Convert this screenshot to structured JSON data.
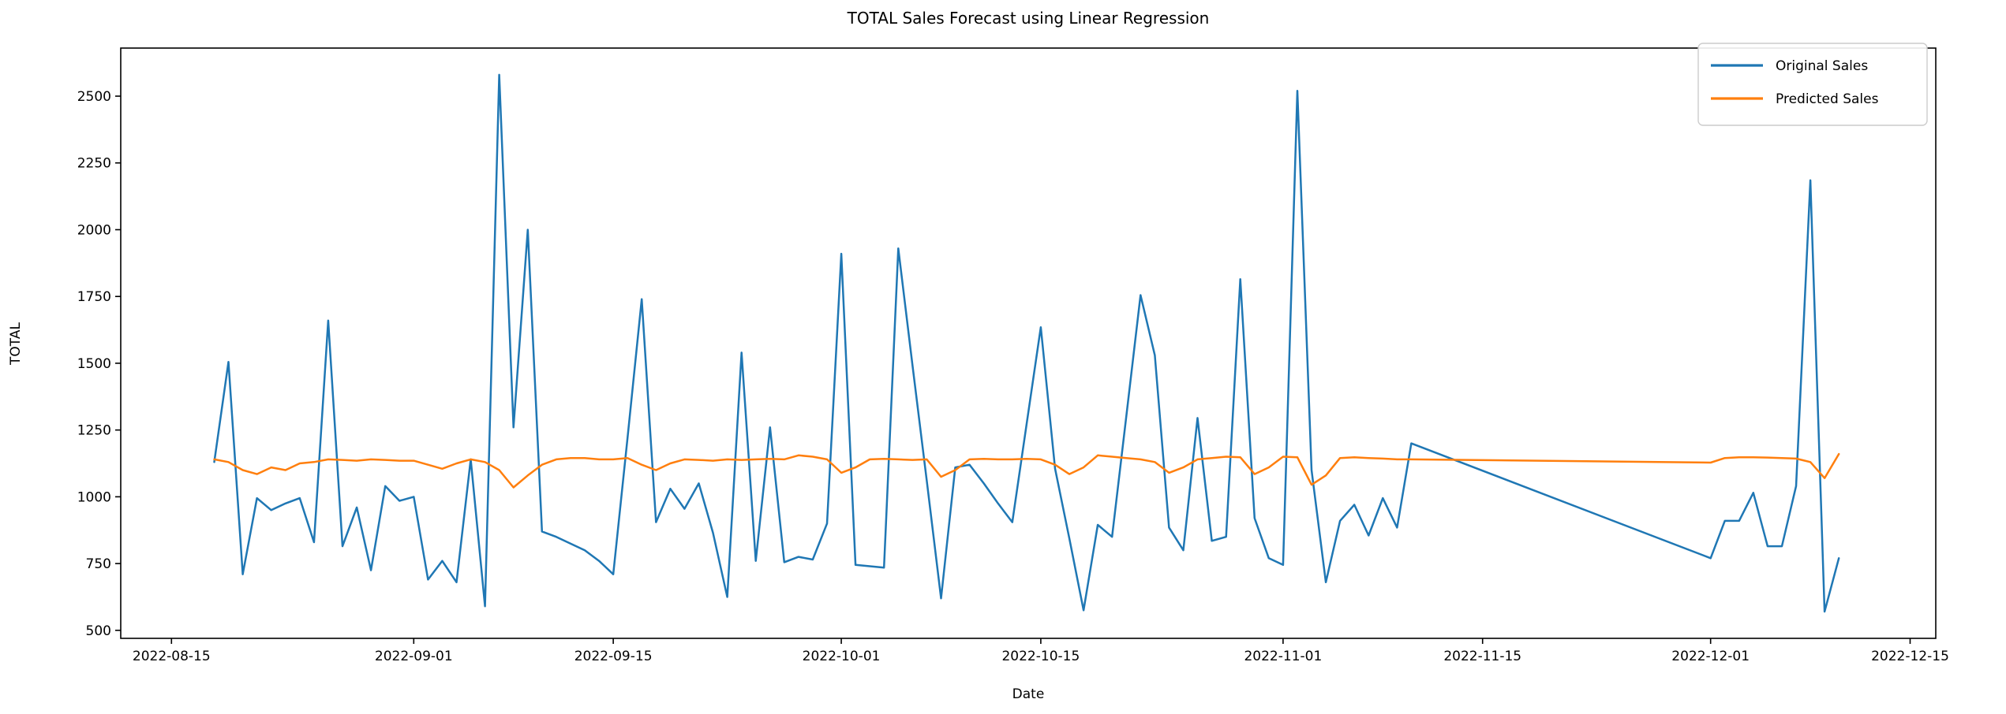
{
  "chart_data": {
    "type": "line",
    "title": "TOTAL Sales Forecast using Linear Regression",
    "xlabel": "Date",
    "ylabel": "TOTAL",
    "grid": false,
    "background": "#ffffff",
    "spine_color": "#000000",
    "x_tick_labels": [
      "2022-08-15",
      "2022-09-01",
      "2022-09-15",
      "2022-10-01",
      "2022-10-15",
      "2022-11-01",
      "2022-11-15",
      "2022-12-01",
      "2022-12-15"
    ],
    "y_ticks": [
      500,
      750,
      1000,
      1250,
      1500,
      1750,
      2000,
      2250,
      2500
    ],
    "ylim": [
      470,
      2680
    ],
    "xlim_dates": [
      "2022-08-12",
      "2022-12-16"
    ],
    "legend": {
      "position": "upper right",
      "entries": [
        {
          "label": "Original Sales",
          "color": "#1f77b4"
        },
        {
          "label": "Predicted Sales",
          "color": "#ff7f0e"
        }
      ]
    },
    "note_data_gap": "no samples between 2022-11-10 and 2022-12-01; lines connect straight across",
    "dates": [
      "2022-08-18",
      "2022-08-19",
      "2022-08-20",
      "2022-08-21",
      "2022-08-22",
      "2022-08-23",
      "2022-08-24",
      "2022-08-25",
      "2022-08-26",
      "2022-08-27",
      "2022-08-28",
      "2022-08-29",
      "2022-08-30",
      "2022-08-31",
      "2022-09-01",
      "2022-09-02",
      "2022-09-03",
      "2022-09-04",
      "2022-09-05",
      "2022-09-06",
      "2022-09-07",
      "2022-09-08",
      "2022-09-09",
      "2022-09-10",
      "2022-09-11",
      "2022-09-12",
      "2022-09-13",
      "2022-09-14",
      "2022-09-15",
      "2022-09-16",
      "2022-09-17",
      "2022-09-18",
      "2022-09-19",
      "2022-09-20",
      "2022-09-21",
      "2022-09-22",
      "2022-09-23",
      "2022-09-24",
      "2022-09-25",
      "2022-09-26",
      "2022-09-27",
      "2022-09-28",
      "2022-09-29",
      "2022-09-30",
      "2022-10-01",
      "2022-10-02",
      "2022-10-03",
      "2022-10-04",
      "2022-10-05",
      "2022-10-06",
      "2022-10-07",
      "2022-10-08",
      "2022-10-09",
      "2022-10-10",
      "2022-10-11",
      "2022-10-12",
      "2022-10-13",
      "2022-10-14",
      "2022-10-15",
      "2022-10-16",
      "2022-10-17",
      "2022-10-18",
      "2022-10-19",
      "2022-10-20",
      "2022-10-21",
      "2022-10-22",
      "2022-10-23",
      "2022-10-24",
      "2022-10-25",
      "2022-10-26",
      "2022-10-27",
      "2022-10-28",
      "2022-10-29",
      "2022-10-30",
      "2022-10-31",
      "2022-11-01",
      "2022-11-02",
      "2022-11-03",
      "2022-11-04",
      "2022-11-05",
      "2022-11-06",
      "2022-11-07",
      "2022-11-08",
      "2022-11-09",
      "2022-11-10",
      "2022-12-01",
      "2022-12-02",
      "2022-12-03",
      "2022-12-04",
      "2022-12-05",
      "2022-12-06",
      "2022-12-07",
      "2022-12-08",
      "2022-12-09",
      "2022-12-10"
    ],
    "series": [
      {
        "name": "Original Sales",
        "color": "#1f77b4",
        "values": [
          1130,
          1505,
          710,
          995,
          950,
          975,
          995,
          830,
          1660,
          815,
          960,
          725,
          1040,
          985,
          1000,
          690,
          760,
          680,
          1140,
          590,
          2580,
          1260,
          2000,
          870,
          850,
          825,
          800,
          760,
          710,
          1220,
          1740,
          905,
          1030,
          955,
          1050,
          865,
          625,
          1540,
          760,
          1260,
          755,
          775,
          765,
          900,
          1910,
          745,
          740,
          735,
          1930,
          1490,
          1060,
          620,
          1110,
          1120,
          1050,
          975,
          905,
          1270,
          1635,
          1105,
          845,
          575,
          895,
          850,
          1300,
          1755,
          1530,
          885,
          800,
          1295,
          835,
          850,
          1815,
          920,
          770,
          745,
          2520,
          1100,
          680,
          910,
          970,
          855,
          995,
          885,
          1200,
          770,
          910,
          910,
          1015,
          815,
          815,
          1040,
          2185,
          570,
          770
        ]
      },
      {
        "name": "Predicted Sales",
        "color": "#ff7f0e",
        "values": [
          1140,
          1130,
          1100,
          1085,
          1110,
          1100,
          1125,
          1130,
          1140,
          1138,
          1135,
          1140,
          1138,
          1135,
          1135,
          1120,
          1105,
          1125,
          1140,
          1130,
          1100,
          1035,
          1080,
          1120,
          1140,
          1145,
          1145,
          1140,
          1140,
          1145,
          1120,
          1100,
          1125,
          1140,
          1138,
          1135,
          1140,
          1138,
          1140,
          1142,
          1140,
          1155,
          1150,
          1140,
          1090,
          1110,
          1140,
          1142,
          1140,
          1138,
          1140,
          1075,
          1100,
          1140,
          1142,
          1140,
          1140,
          1142,
          1140,
          1120,
          1085,
          1110,
          1155,
          1150,
          1145,
          1140,
          1130,
          1090,
          1110,
          1140,
          1145,
          1150,
          1148,
          1085,
          1110,
          1150,
          1148,
          1045,
          1080,
          1145,
          1148,
          1145,
          1143,
          1140,
          1140,
          1128,
          1145,
          1148,
          1148,
          1147,
          1145,
          1143,
          1130,
          1070,
          1160
        ]
      }
    ]
  }
}
